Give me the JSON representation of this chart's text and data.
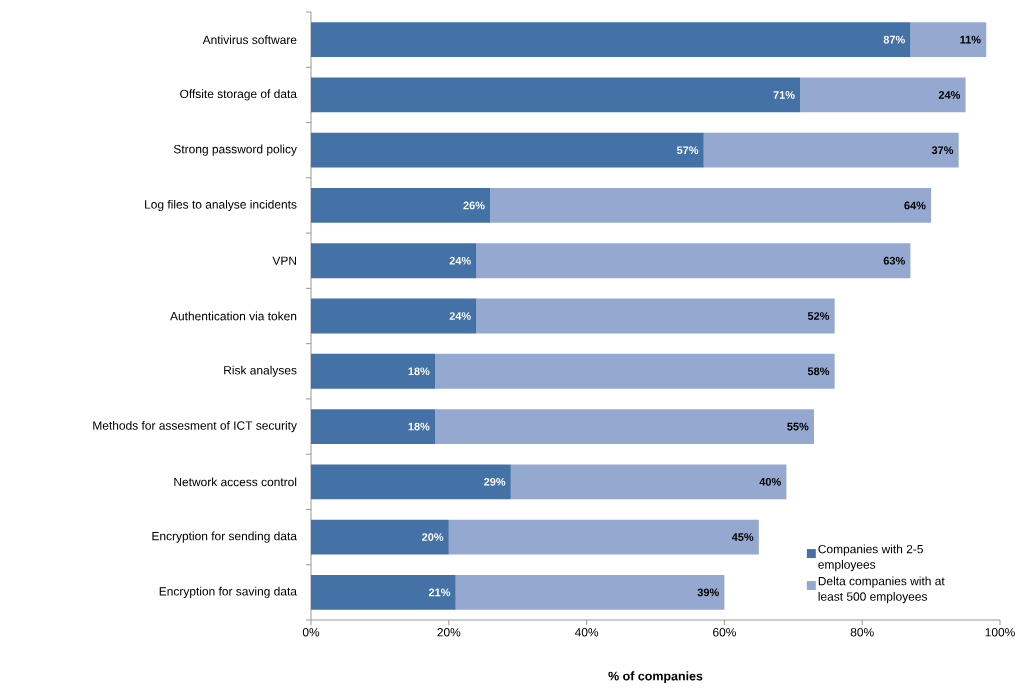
{
  "chart_data": {
    "type": "bar",
    "orientation": "horizontal",
    "stacked": true,
    "xlabel": "% of companies",
    "categories": [
      "Antivirus software",
      "Offsite storage of data",
      "Strong password policy",
      "Log files to analyse incidents",
      "VPN",
      "Authentication via token",
      "Risk analyses",
      "Methods for assesment of ICT security",
      "Network access control",
      "Encryption for sending data",
      "Encryption for saving data"
    ],
    "series": [
      {
        "name": "Companies with 2-5 employees",
        "color": "#4472a6",
        "values": [
          87,
          71,
          57,
          26,
          24,
          24,
          18,
          18,
          29,
          20,
          21
        ],
        "value_labels": [
          "87%",
          "71%",
          "57%",
          "26%",
          "24%",
          "24%",
          "18%",
          "18%",
          "29%",
          "20%",
          "21%"
        ]
      },
      {
        "name": "Delta companies with at least 500 employees",
        "color": "#95a9d0",
        "values": [
          11,
          24,
          37,
          64,
          63,
          52,
          58,
          55,
          40,
          45,
          39
        ],
        "value_labels": [
          "11%",
          "24%",
          "37%",
          "64%",
          "63%",
          "52%",
          "58%",
          "55%",
          "40%",
          "45%",
          "39%"
        ]
      }
    ],
    "xlim": [
      0,
      100
    ],
    "xticks": [
      {
        "value": 0,
        "label": "0%"
      },
      {
        "value": 20,
        "label": "20%"
      },
      {
        "value": 40,
        "label": "40%"
      },
      {
        "value": 60,
        "label": "60%"
      },
      {
        "value": 80,
        "label": "80%"
      },
      {
        "value": 100,
        "label": "100%"
      }
    ],
    "grid": false,
    "legend": "bottom right"
  }
}
